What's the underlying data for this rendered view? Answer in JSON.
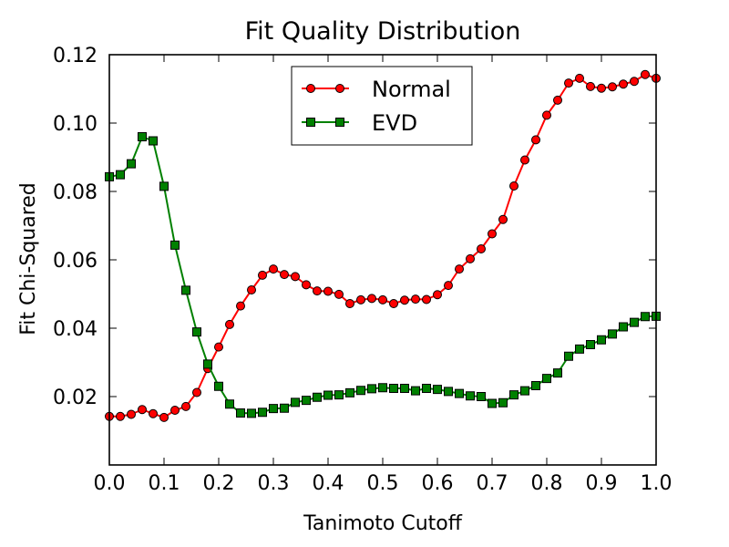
{
  "chart_data": {
    "type": "line",
    "title": "Fit Quality Distribution",
    "xlabel": "Tanimoto Cutoff",
    "ylabel": "Fit Chi-Squared",
    "xlim": [
      0.0,
      1.0
    ],
    "ylim": [
      0.0,
      0.12
    ],
    "xticks": [
      "0.0",
      "0.1",
      "0.2",
      "0.3",
      "0.4",
      "0.5",
      "0.6",
      "0.7",
      "0.8",
      "0.9",
      "1.0"
    ],
    "yticks": [
      "0.02",
      "0.04",
      "0.06",
      "0.08",
      "0.10",
      "0.12"
    ],
    "grid": false,
    "legend_position": "top-center",
    "x": [
      0.0,
      0.02,
      0.04,
      0.06,
      0.08,
      0.1,
      0.12,
      0.14,
      0.16,
      0.18,
      0.2,
      0.22,
      0.24,
      0.26,
      0.28,
      0.3,
      0.32,
      0.34,
      0.36,
      0.38,
      0.4,
      0.42,
      0.44,
      0.46,
      0.48,
      0.5,
      0.52,
      0.54,
      0.56,
      0.58,
      0.6,
      0.62,
      0.64,
      0.66,
      0.68,
      0.7,
      0.72,
      0.74,
      0.76,
      0.78,
      0.8,
      0.82,
      0.84,
      0.86,
      0.88,
      0.9,
      0.92,
      0.94,
      0.96,
      0.98,
      1.0
    ],
    "series": [
      {
        "name": "Normal",
        "color": "#ff0000",
        "marker": "circle",
        "values": [
          0.0142,
          0.0142,
          0.0148,
          0.0162,
          0.015,
          0.0139,
          0.016,
          0.0171,
          0.0212,
          0.0282,
          0.0345,
          0.0411,
          0.0465,
          0.0512,
          0.0555,
          0.0573,
          0.0557,
          0.0551,
          0.0527,
          0.0509,
          0.0508,
          0.0499,
          0.0472,
          0.0483,
          0.0487,
          0.0483,
          0.0472,
          0.0482,
          0.0485,
          0.0484,
          0.0498,
          0.0525,
          0.0573,
          0.0603,
          0.0632,
          0.0676,
          0.0718,
          0.0816,
          0.0892,
          0.0951,
          0.1023,
          0.1067,
          0.1117,
          0.1131,
          0.1107,
          0.1102,
          0.1106,
          0.1114,
          0.1122,
          0.1142,
          0.1131
        ]
      },
      {
        "name": "EVD",
        "color": "#008000",
        "marker": "square",
        "values": [
          0.0843,
          0.0849,
          0.0881,
          0.096,
          0.0948,
          0.0815,
          0.0643,
          0.0511,
          0.0389,
          0.0295,
          0.023,
          0.0178,
          0.0152,
          0.0151,
          0.0154,
          0.0165,
          0.0166,
          0.0183,
          0.0189,
          0.0198,
          0.0204,
          0.0205,
          0.0211,
          0.0218,
          0.0223,
          0.0226,
          0.0224,
          0.0224,
          0.0217,
          0.0224,
          0.0221,
          0.0215,
          0.0209,
          0.0202,
          0.02,
          0.018,
          0.0182,
          0.0205,
          0.0217,
          0.0232,
          0.0253,
          0.0269,
          0.0318,
          0.0339,
          0.0352,
          0.0366,
          0.0383,
          0.0404,
          0.0417,
          0.0434,
          0.0435
        ]
      }
    ]
  }
}
